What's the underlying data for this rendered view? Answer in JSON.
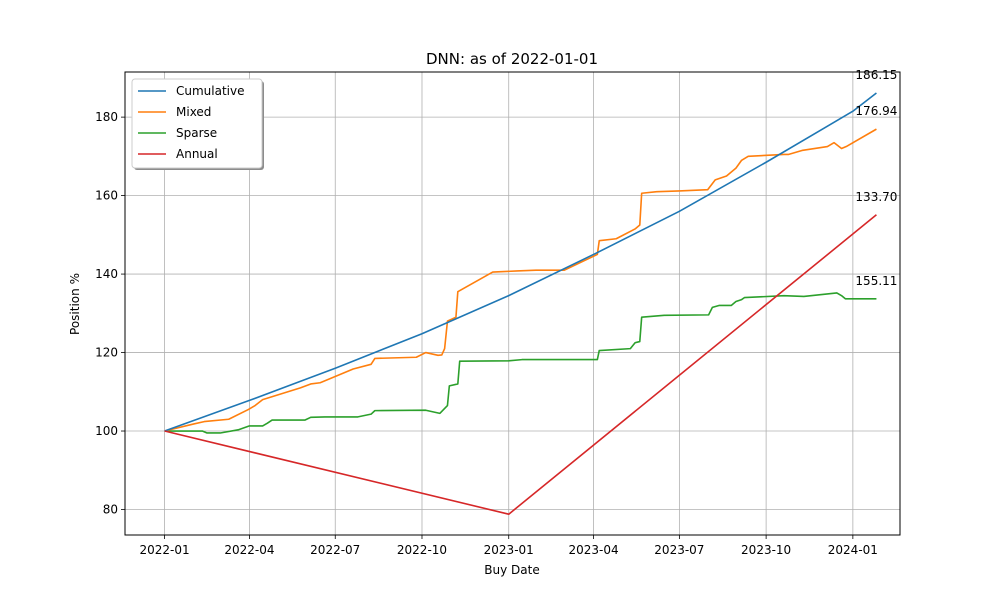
{
  "chart_data": {
    "type": "line",
    "title": "DNN: as of 2022-01-01",
    "xlabel": "Buy Date",
    "ylabel": "Position %",
    "xlim": [
      "2021-11-20",
      "2024-02-20"
    ],
    "ylim": [
      73.5,
      191.5
    ],
    "x_ticks": [
      "2022-01",
      "2022-04",
      "2022-07",
      "2022-10",
      "2023-01",
      "2023-04",
      "2023-07",
      "2023-10",
      "2024-01"
    ],
    "y_ticks": [
      80,
      100,
      120,
      140,
      160,
      180
    ],
    "grid": true,
    "legend_position": "top-left",
    "series": [
      {
        "name": "Cumulative",
        "color": "#1f77b4",
        "points": [
          [
            "2022-01-01",
            100
          ],
          [
            "2022-04-01",
            107.8
          ],
          [
            "2022-07-01",
            116.0
          ],
          [
            "2022-10-01",
            124.8
          ],
          [
            "2023-01-01",
            134.5
          ],
          [
            "2023-04-01",
            145.0
          ],
          [
            "2023-07-01",
            156.0
          ],
          [
            "2023-10-01",
            168.5
          ],
          [
            "2024-01-01",
            181.5
          ],
          [
            "2024-01-26",
            186.15
          ]
        ]
      },
      {
        "name": "Mixed",
        "color": "#ff7f0e",
        "points": [
          [
            "2022-01-01",
            100
          ],
          [
            "2022-02-01",
            101.8
          ],
          [
            "2022-02-12",
            102.4
          ],
          [
            "2022-03-10",
            103.0
          ],
          [
            "2022-03-31",
            105.5
          ],
          [
            "2022-04-07",
            106.5
          ],
          [
            "2022-04-15",
            108.0
          ],
          [
            "2022-05-25",
            111.0
          ],
          [
            "2022-06-05",
            112.0
          ],
          [
            "2022-06-15",
            112.3
          ],
          [
            "2022-07-20",
            115.8
          ],
          [
            "2022-08-08",
            117.0
          ],
          [
            "2022-08-12",
            118.5
          ],
          [
            "2022-09-25",
            118.8
          ],
          [
            "2022-10-05",
            120.0
          ],
          [
            "2022-10-18",
            119.3
          ],
          [
            "2022-10-22",
            119.4
          ],
          [
            "2022-10-25",
            121.0
          ],
          [
            "2022-10-28",
            128.0
          ],
          [
            "2022-11-06",
            129.0
          ],
          [
            "2022-11-08",
            135.5
          ],
          [
            "2022-12-15",
            140.5
          ],
          [
            "2023-01-10",
            140.8
          ],
          [
            "2023-01-30",
            141.0
          ],
          [
            "2023-03-01",
            141.0
          ],
          [
            "2023-04-05",
            145.0
          ],
          [
            "2023-04-07",
            148.5
          ],
          [
            "2023-04-25",
            149.0
          ],
          [
            "2023-05-15",
            151.5
          ],
          [
            "2023-05-20",
            152.5
          ],
          [
            "2023-05-22",
            160.6
          ],
          [
            "2023-06-07",
            161.0
          ],
          [
            "2023-07-01",
            161.2
          ],
          [
            "2023-07-31",
            161.5
          ],
          [
            "2023-08-08",
            164.0
          ],
          [
            "2023-08-20",
            165.0
          ],
          [
            "2023-08-30",
            167.0
          ],
          [
            "2023-09-05",
            169.0
          ],
          [
            "2023-09-12",
            170.0
          ],
          [
            "2023-10-20",
            170.5
          ],
          [
            "2023-10-25",
            170.5
          ],
          [
            "2023-11-08",
            171.5
          ],
          [
            "2023-12-05",
            172.5
          ],
          [
            "2023-12-12",
            173.5
          ],
          [
            "2023-12-20",
            172.0
          ],
          [
            "2023-12-25",
            172.5
          ],
          [
            "2024-01-26",
            176.94
          ]
        ]
      },
      {
        "name": "Sparse",
        "color": "#2ca02c",
        "points": [
          [
            "2022-01-01",
            100
          ],
          [
            "2022-02-10",
            100.0
          ],
          [
            "2022-02-15",
            99.5
          ],
          [
            "2022-03-01",
            99.5
          ],
          [
            "2022-03-20",
            100.3
          ],
          [
            "2022-04-01",
            101.3
          ],
          [
            "2022-04-15",
            101.3
          ],
          [
            "2022-04-20",
            102.0
          ],
          [
            "2022-04-25",
            102.8
          ],
          [
            "2022-05-30",
            102.8
          ],
          [
            "2022-06-05",
            103.5
          ],
          [
            "2022-06-20",
            103.6
          ],
          [
            "2022-07-25",
            103.6
          ],
          [
            "2022-08-08",
            104.3
          ],
          [
            "2022-08-12",
            105.2
          ],
          [
            "2022-10-05",
            105.3
          ],
          [
            "2022-10-20",
            104.5
          ],
          [
            "2022-10-28",
            106.5
          ],
          [
            "2022-10-30",
            111.5
          ],
          [
            "2022-11-08",
            112.0
          ],
          [
            "2022-11-10",
            117.8
          ],
          [
            "2023-01-01",
            117.9
          ],
          [
            "2023-01-15",
            118.2
          ],
          [
            "2023-04-05",
            118.2
          ],
          [
            "2023-04-07",
            120.5
          ],
          [
            "2023-05-10",
            121.0
          ],
          [
            "2023-05-15",
            122.5
          ],
          [
            "2023-05-20",
            122.8
          ],
          [
            "2023-05-22",
            129.0
          ],
          [
            "2023-06-15",
            129.5
          ],
          [
            "2023-08-01",
            129.6
          ],
          [
            "2023-08-05",
            131.5
          ],
          [
            "2023-08-12",
            132.0
          ],
          [
            "2023-08-25",
            132.0
          ],
          [
            "2023-08-30",
            133.0
          ],
          [
            "2023-09-05",
            133.5
          ],
          [
            "2023-09-08",
            134.0
          ],
          [
            "2023-10-20",
            134.5
          ],
          [
            "2023-11-10",
            134.3
          ],
          [
            "2023-12-15",
            135.2
          ],
          [
            "2023-12-20",
            134.5
          ],
          [
            "2023-12-24",
            133.7
          ],
          [
            "2024-01-26",
            133.7
          ]
        ]
      },
      {
        "name": "Annual",
        "color": "#d62728",
        "points": [
          [
            "2022-01-01",
            100
          ],
          [
            "2023-01-01",
            78.8
          ],
          [
            "2024-01-26",
            155.11
          ]
        ]
      }
    ],
    "annotations": [
      "186.15",
      "176.94",
      "155.11",
      "133.70"
    ]
  }
}
